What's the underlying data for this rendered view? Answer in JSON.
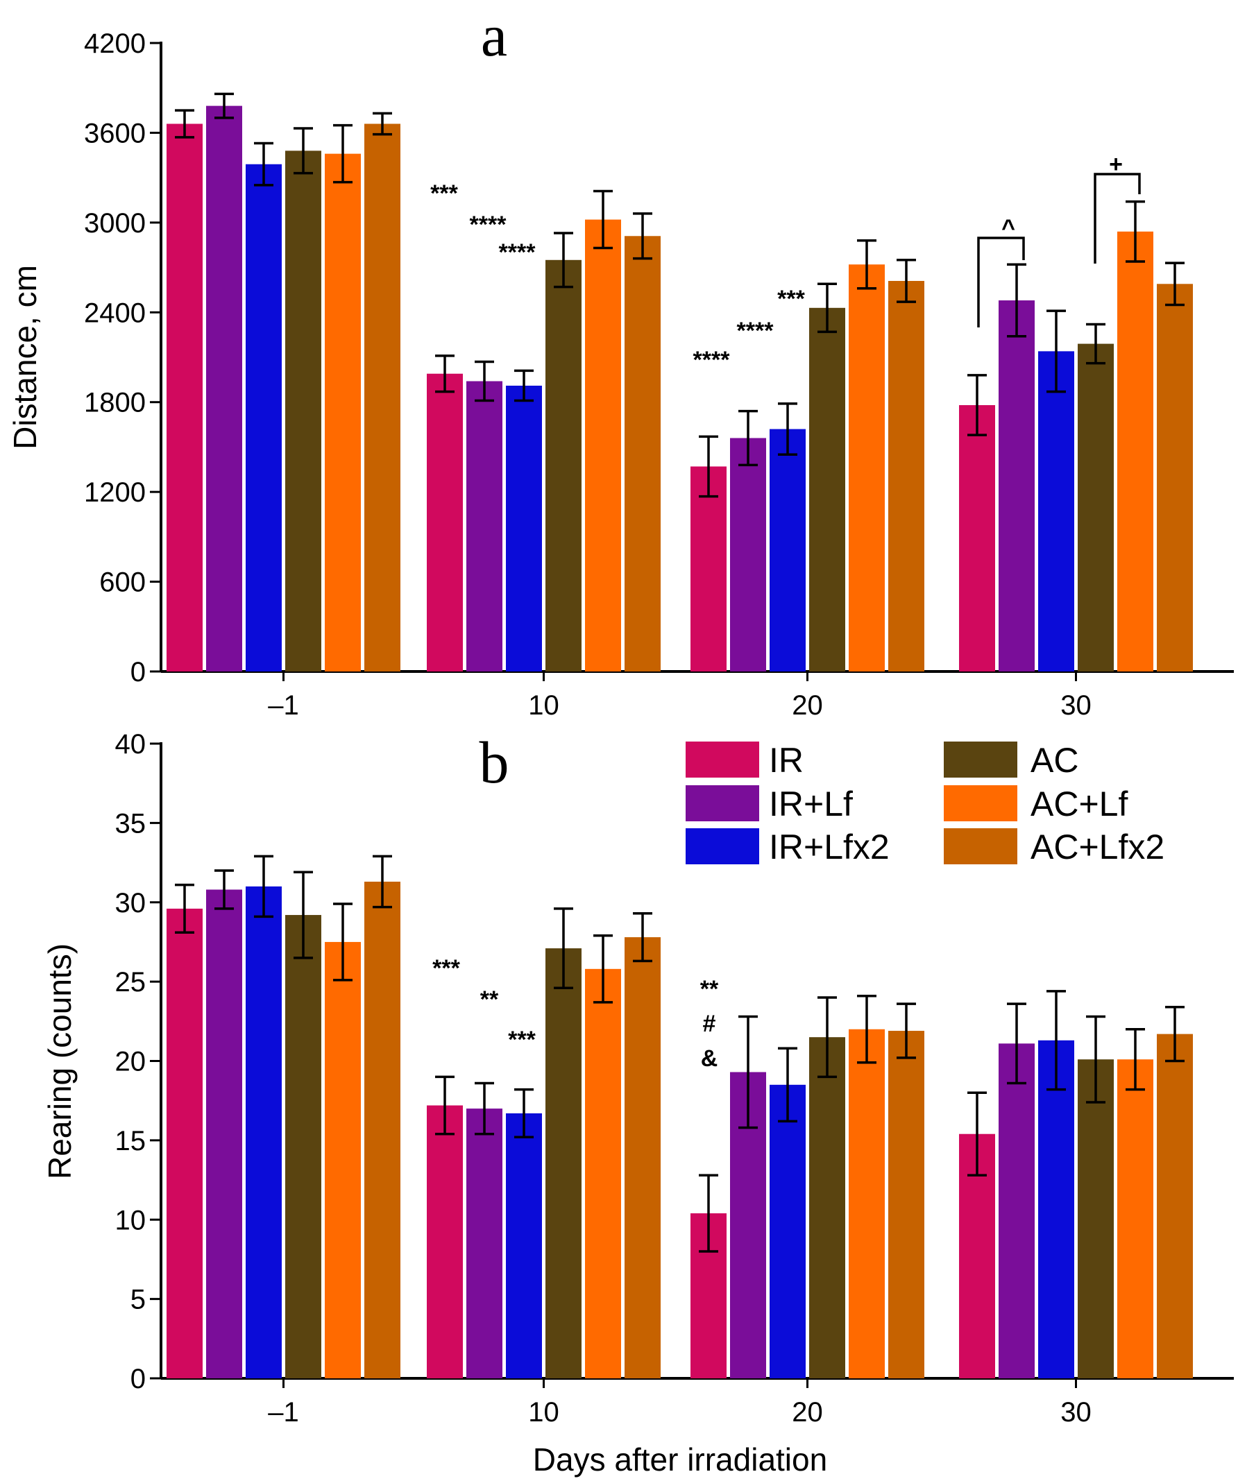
{
  "figure": {
    "xlabel": "Days after irradiation",
    "series_colors": {
      "IR": "#d1095e",
      "IR+Lf": "#7a0d99",
      "IR+Lfx2": "#0b0cd8",
      "AC": "#5a4410",
      "AC+Lf": "#ff6a00",
      "AC+Lfx2": "#c66200"
    }
  },
  "chart_data": [
    {
      "type": "bar",
      "panel": "a",
      "title": "a",
      "xlabel": "",
      "ylabel": "Distance, cm",
      "ylim": [
        0,
        4200
      ],
      "yticks": [
        0,
        600,
        1200,
        1800,
        2400,
        3000,
        3600,
        4200
      ],
      "categories": [
        "–1",
        "10",
        "20",
        "30"
      ],
      "series": [
        {
          "name": "IR",
          "values": [
            3660,
            1990,
            1370,
            1780
          ],
          "errors": [
            90,
            120,
            200,
            200
          ]
        },
        {
          "name": "IR+Lf",
          "values": [
            3780,
            1940,
            1560,
            2480
          ],
          "errors": [
            80,
            130,
            180,
            240
          ]
        },
        {
          "name": "IR+Lfx2",
          "values": [
            3390,
            1910,
            1620,
            2140
          ],
          "errors": [
            140,
            100,
            170,
            270
          ]
        },
        {
          "name": "AC",
          "values": [
            3480,
            2750,
            2430,
            2190
          ],
          "errors": [
            150,
            180,
            160,
            130
          ]
        },
        {
          "name": "AC+Lf",
          "values": [
            3460,
            3020,
            2720,
            2940
          ],
          "errors": [
            190,
            190,
            160,
            200
          ]
        },
        {
          "name": "AC+Lfx2",
          "values": [
            3660,
            2910,
            2610,
            2590
          ],
          "errors": [
            70,
            150,
            140,
            140
          ]
        }
      ],
      "annotations": [
        {
          "text": "***",
          "category": "10"
        },
        {
          "text": "****",
          "category": "10"
        },
        {
          "text": "****",
          "category": "10"
        },
        {
          "text": "****",
          "category": "20"
        },
        {
          "text": "****",
          "category": "20"
        },
        {
          "text": "***",
          "category": "20"
        },
        {
          "text": "^",
          "category": "30"
        },
        {
          "text": "+",
          "category": "30"
        }
      ]
    },
    {
      "type": "bar",
      "panel": "b",
      "title": "b",
      "xlabel": "Days after irradiation",
      "ylabel": "Rearing (counts)",
      "ylim": [
        0,
        40
      ],
      "yticks": [
        0,
        5,
        10,
        15,
        20,
        25,
        30,
        35,
        40
      ],
      "categories": [
        "–1",
        "10",
        "20",
        "30"
      ],
      "series": [
        {
          "name": "IR",
          "values": [
            29.6,
            17.2,
            10.4,
            15.4
          ],
          "errors": [
            1.5,
            1.8,
            2.4,
            2.6
          ]
        },
        {
          "name": "IR+Lf",
          "values": [
            30.8,
            17.0,
            19.3,
            21.1
          ],
          "errors": [
            1.2,
            1.6,
            3.5,
            2.5
          ]
        },
        {
          "name": "IR+Lfx2",
          "values": [
            31.0,
            16.7,
            18.5,
            21.3
          ],
          "errors": [
            1.9,
            1.5,
            2.3,
            3.1
          ]
        },
        {
          "name": "AC",
          "values": [
            29.2,
            27.1,
            21.5,
            20.1
          ],
          "errors": [
            2.7,
            2.5,
            2.5,
            2.7
          ]
        },
        {
          "name": "AC+Lf",
          "values": [
            27.5,
            25.8,
            22.0,
            20.1
          ],
          "errors": [
            2.4,
            2.1,
            2.1,
            1.9
          ]
        },
        {
          "name": "AC+Lfx2",
          "values": [
            31.3,
            27.8,
            21.9,
            21.7
          ],
          "errors": [
            1.6,
            1.5,
            1.7,
            1.7
          ]
        }
      ],
      "legend": {
        "placement": "top-right",
        "entries": [
          "IR",
          "IR+Lf",
          "IR+Lfx2",
          "AC",
          "AC+Lf",
          "AC+Lfx2"
        ]
      },
      "annotations": [
        {
          "text": "***",
          "category": "10"
        },
        {
          "text": "**",
          "category": "10"
        },
        {
          "text": "***",
          "category": "10"
        },
        {
          "text": "**",
          "category": "20"
        },
        {
          "text": "#",
          "category": "20"
        },
        {
          "text": "&",
          "category": "20"
        }
      ]
    }
  ]
}
